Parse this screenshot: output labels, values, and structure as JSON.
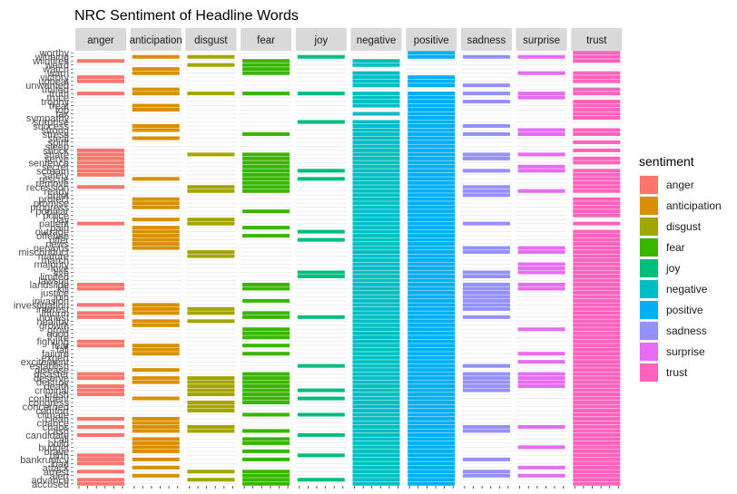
{
  "chart_data": {
    "type": "bar",
    "title": "NRC Sentiment of Headline Words",
    "xlabel": "",
    "ylabel": "",
    "facets": [
      "anger",
      "anticipation",
      "disgust",
      "fear",
      "joy",
      "negative",
      "positive",
      "sadness",
      "surprise",
      "trust"
    ],
    "legend": {
      "title": "sentiment",
      "placement": "right",
      "entries": [
        {
          "label": "anger",
          "color": "#F8766D"
        },
        {
          "label": "anticipation",
          "color": "#D89000"
        },
        {
          "label": "disgust",
          "color": "#A3A500"
        },
        {
          "label": "fear",
          "color": "#39B600"
        },
        {
          "label": "joy",
          "color": "#00BF7D"
        },
        {
          "label": "negative",
          "color": "#00BFC4"
        },
        {
          "label": "positive",
          "color": "#00B0F6"
        },
        {
          "label": "sadness",
          "color": "#9590FF"
        },
        {
          "label": "surprise",
          "color": "#E76BF3"
        },
        {
          "label": "trust",
          "color": "#FF62BC"
        }
      ]
    },
    "words": [
      "worthy",
      "winning",
      "wildfires",
      "weird",
      "watch",
      "warn",
      "victory",
      "upbeat",
      "unwanted",
      "united",
      "truth",
      "truce",
      "trophy",
      "treat",
      "top",
      "tax",
      "sympathy",
      "surprise",
      "success",
      "strong",
      "stress",
      "steal",
      "spirit",
      "sleep",
      "shock",
      "share",
      "serve",
      "sentence",
      "secret",
      "scream",
      "safety",
      "rescue",
      "remove",
      "recession",
      "ready",
      "quiet",
      "protect",
      "promise",
      "progress",
      "popular",
      "police",
      "pay",
      "patient",
      "pain",
      "outrage",
      "offense",
      "offer",
      "news",
      "nervous",
      "misconduct",
      "mature",
      "march",
      "majority",
      "love",
      "live",
      "limited",
      "lawsuit",
      "landslide",
      "kill",
      "justice",
      "join",
      "invasion",
      "investigation",
      "interest",
      "inform",
      "honest",
      "healthy",
      "growth",
      "grow",
      "good",
      "fire",
      "fighting",
      "fear",
      "fall",
      "failure",
      "expert",
      "excitement",
      "establish",
      "disease",
      "disaster",
      "deserve",
      "destroy",
      "death",
      "criminal",
      "crash",
      "confident",
      "congress",
      "concerned",
      "comfort",
      "climate",
      "clean",
      "chance",
      "chaos",
      "cash",
      "candidate",
      "call",
      "build",
      "budget",
      "brave",
      "birth",
      "bankruptcy",
      "bad",
      "attack",
      "arrest",
      "alert",
      "advance",
      "accused"
    ],
    "word_sentiments": {
      "worthy": [
        "positive",
        "trust"
      ],
      "winning": [
        "anticipation",
        "disgust",
        "joy",
        "positive",
        "sadness",
        "surprise",
        "trust"
      ],
      "wildfires": [
        "anger",
        "fear",
        "negative",
        "trust"
      ],
      "weird": [
        "disgust",
        "fear",
        "negative"
      ],
      "watch": [
        "anticipation",
        "fear"
      ],
      "warn": [
        "anticipation",
        "fear",
        "negative",
        "surprise",
        "trust"
      ],
      "victory": [
        "anger",
        "negative",
        "positive",
        "trust"
      ],
      "upbeat": [
        "anger",
        "negative",
        "positive",
        "trust"
      ],
      "unwanted": [
        "negative",
        "positive",
        "sadness"
      ],
      "united": [
        "anticipation",
        "trust"
      ],
      "truth": [
        "anger",
        "anticipation",
        "disgust",
        "fear",
        "joy",
        "negative",
        "positive",
        "sadness",
        "surprise",
        "trust"
      ],
      "truce": [
        "negative",
        "positive",
        "surprise"
      ],
      "trophy": [
        "negative",
        "positive",
        "sadness",
        "trust"
      ],
      "treat": [
        "anticipation",
        "negative",
        "positive",
        "trust"
      ],
      "top": [
        "anticipation",
        "positive",
        "trust"
      ],
      "tax": [
        "negative",
        "positive",
        "trust"
      ],
      "sympathy": [
        "positive",
        "trust"
      ],
      "surprise": [
        "joy",
        "negative",
        "positive"
      ],
      "success": [
        "anticipation",
        "negative",
        "positive",
        "sadness"
      ],
      "strong": [
        "anticipation",
        "negative",
        "positive",
        "surprise",
        "trust"
      ],
      "stress": [
        "fear",
        "negative",
        "positive",
        "sadness",
        "surprise",
        "trust"
      ],
      "steal": [
        "anticipation",
        "negative",
        "positive"
      ],
      "spirit": [
        "negative",
        "positive",
        "trust"
      ],
      "sleep": [
        "negative",
        "positive"
      ],
      "shock": [
        "anger",
        "negative",
        "positive",
        "trust"
      ],
      "share": [
        "anger",
        "disgust",
        "fear",
        "negative",
        "positive",
        "sadness",
        "surprise"
      ],
      "serve": [
        "anger",
        "fear",
        "negative",
        "positive",
        "sadness",
        "trust"
      ],
      "sentence": [
        "anger",
        "fear",
        "negative",
        "positive",
        "trust"
      ],
      "secret": [
        "anger",
        "fear",
        "negative",
        "positive",
        "surprise"
      ],
      "scream": [
        "anger",
        "fear",
        "joy",
        "negative",
        "positive",
        "sadness",
        "surprise",
        "trust"
      ],
      "safety": [
        "anger",
        "fear",
        "negative",
        "positive",
        "trust"
      ],
      "rescue": [
        "anticipation",
        "fear",
        "joy",
        "negative",
        "positive",
        "trust"
      ],
      "remove": [
        "fear",
        "negative",
        "positive",
        "trust"
      ],
      "recession": [
        "anger",
        "disgust",
        "fear",
        "negative",
        "positive",
        "sadness",
        "trust"
      ],
      "ready": [
        "disgust",
        "fear",
        "negative",
        "positive",
        "sadness",
        "surprise",
        "trust"
      ],
      "quiet": [
        "negative",
        "positive",
        "sadness"
      ],
      "protect": [
        "anticipation",
        "negative",
        "positive",
        "trust"
      ],
      "promise": [
        "anticipation",
        "negative",
        "positive",
        "trust"
      ],
      "progress": [
        "anticipation",
        "negative",
        "positive",
        "trust"
      ],
      "popular": [
        "fear",
        "negative",
        "positive",
        "trust"
      ],
      "police": [
        "negative",
        "positive",
        "trust"
      ],
      "pay": [
        "anticipation",
        "disgust",
        "negative",
        "positive"
      ],
      "patient": [
        "anger",
        "disgust",
        "negative",
        "positive",
        "sadness",
        "trust"
      ],
      "pain": [
        "anticipation",
        "fear",
        "negative",
        "positive"
      ],
      "outrage": [
        "anticipation",
        "joy",
        "negative",
        "positive",
        "trust"
      ],
      "offense": [
        "anticipation",
        "fear",
        "negative",
        "positive",
        "trust"
      ],
      "offer": [
        "anticipation",
        "joy",
        "negative",
        "positive",
        "trust"
      ],
      "news": [
        "anticipation",
        "negative",
        "positive",
        "trust"
      ],
      "nervous": [
        "anticipation",
        "negative",
        "positive",
        "sadness",
        "surprise",
        "trust"
      ],
      "misconduct": [
        "disgust",
        "negative",
        "positive",
        "sadness",
        "surprise",
        "trust"
      ],
      "mature": [
        "disgust",
        "negative",
        "positive",
        "trust"
      ],
      "march": [
        "negative",
        "positive",
        "trust"
      ],
      "majority": [
        "negative",
        "positive",
        "surprise",
        "trust"
      ],
      "love": [
        "negative",
        "positive",
        "surprise",
        "trust"
      ],
      "live": [
        "joy",
        "negative",
        "positive",
        "sadness",
        "surprise",
        "trust"
      ],
      "limited": [
        "joy",
        "negative",
        "positive",
        "sadness",
        "trust"
      ],
      "lawsuit": [
        "negative",
        "positive",
        "trust"
      ],
      "landslide": [
        "anger",
        "fear",
        "negative",
        "positive",
        "sadness",
        "surprise",
        "trust"
      ],
      "kill": [
        "anger",
        "fear",
        "negative",
        "positive",
        "sadness",
        "surprise",
        "trust"
      ],
      "justice": [
        "negative",
        "positive",
        "sadness",
        "trust"
      ],
      "join": [
        "negative",
        "positive",
        "sadness",
        "trust"
      ],
      "invasion": [
        "fear",
        "negative",
        "positive",
        "sadness",
        "trust"
      ],
      "investigation": [
        "anger",
        "anticipation",
        "negative",
        "positive",
        "sadness",
        "trust"
      ],
      "interest": [
        "anticipation",
        "disgust",
        "negative",
        "positive",
        "sadness",
        "trust"
      ],
      "inform": [
        "anger",
        "anticipation",
        "disgust",
        "fear",
        "negative",
        "positive",
        "trust"
      ],
      "honest": [
        "anger",
        "fear",
        "joy",
        "negative",
        "positive",
        "sadness",
        "trust"
      ],
      "healthy": [
        "anticipation",
        "disgust",
        "negative",
        "positive",
        "trust"
      ],
      "growth": [
        "anticipation",
        "negative",
        "positive",
        "trust"
      ],
      "grow": [
        "fear",
        "negative",
        "positive",
        "surprise",
        "trust"
      ],
      "good": [
        "fear",
        "negative",
        "positive",
        "trust"
      ],
      "fire": [
        "fear",
        "negative",
        "positive",
        "trust"
      ],
      "fighting": [
        "anger",
        "negative",
        "positive",
        "trust"
      ],
      "fear": [
        "anger",
        "anticipation",
        "fear",
        "negative",
        "positive",
        "trust"
      ],
      "fall": [
        "anticipation",
        "negative",
        "positive",
        "trust"
      ],
      "failure": [
        "anticipation",
        "fear",
        "negative",
        "positive",
        "surprise",
        "trust"
      ],
      "expert": [
        "negative",
        "positive",
        "trust"
      ],
      "excitement": [
        "negative",
        "positive",
        "surprise",
        "trust"
      ],
      "establish": [
        "joy",
        "negative",
        "positive",
        "sadness",
        "trust"
      ],
      "disease": [
        "anticipation",
        "negative",
        "positive",
        "trust"
      ],
      "disaster": [
        "anger",
        "fear",
        "negative",
        "positive",
        "sadness",
        "surprise",
        "trust"
      ],
      "deserve": [
        "anger",
        "anticipation",
        "disgust",
        "fear",
        "negative",
        "positive",
        "sadness",
        "surprise",
        "trust"
      ],
      "destroy": [
        "anticipation",
        "disgust",
        "fear",
        "negative",
        "positive",
        "sadness",
        "surprise",
        "trust"
      ],
      "death": [
        "anger",
        "disgust",
        "fear",
        "negative",
        "positive",
        "sadness",
        "surprise",
        "trust"
      ],
      "criminal": [
        "anger",
        "disgust",
        "fear",
        "joy",
        "negative",
        "positive",
        "sadness",
        "trust"
      ],
      "crash": [
        "anger",
        "disgust",
        "fear",
        "negative",
        "positive",
        "trust"
      ],
      "confident": [
        "anticipation",
        "fear",
        "joy",
        "negative",
        "positive",
        "trust"
      ],
      "congress": [
        "disgust",
        "fear",
        "negative",
        "positive",
        "trust"
      ],
      "concerned": [
        "disgust",
        "negative",
        "positive",
        "trust"
      ],
      "comfort": [
        "disgust",
        "negative",
        "positive",
        "trust"
      ],
      "climate": [
        "fear",
        "joy",
        "negative",
        "positive",
        "trust"
      ],
      "clean": [
        "anger",
        "anticipation",
        "negative",
        "positive",
        "trust"
      ],
      "chance": [
        "anticipation",
        "negative",
        "positive",
        "trust"
      ],
      "chaos": [
        "anger",
        "anticipation",
        "disgust",
        "negative",
        "positive",
        "sadness",
        "surprise",
        "trust"
      ],
      "cash": [
        "anticipation",
        "disgust",
        "fear",
        "negative",
        "positive",
        "sadness",
        "trust"
      ],
      "candidate": [
        "anger",
        "joy",
        "negative",
        "positive",
        "trust"
      ],
      "call": [
        "anticipation",
        "fear",
        "negative",
        "positive",
        "trust"
      ],
      "build": [
        "anticipation",
        "fear",
        "negative",
        "positive",
        "trust"
      ],
      "budget": [
        "anticipation",
        "negative",
        "positive",
        "surprise",
        "trust"
      ],
      "brave": [
        "anticipation",
        "fear",
        "negative",
        "positive",
        "trust"
      ],
      "birth": [
        "anger",
        "joy",
        "negative",
        "positive",
        "trust"
      ],
      "bankruptcy": [
        "anger",
        "anticipation",
        "fear",
        "negative",
        "positive",
        "sadness",
        "trust"
      ],
      "bad": [
        "anger",
        "negative",
        "positive",
        "trust"
      ],
      "attack": [
        "anticipation",
        "negative",
        "positive",
        "surprise",
        "trust"
      ],
      "arrest": [
        "anger",
        "disgust",
        "fear",
        "negative",
        "positive",
        "sadness",
        "trust"
      ],
      "alert": [
        "anticipation",
        "fear",
        "negative",
        "positive",
        "sadness",
        "surprise",
        "trust"
      ],
      "advance": [
        "anger",
        "disgust",
        "fear",
        "joy",
        "negative",
        "positive",
        "trust"
      ],
      "accused": [
        "anger",
        "fear",
        "negative",
        "positive",
        "trust"
      ]
    }
  }
}
